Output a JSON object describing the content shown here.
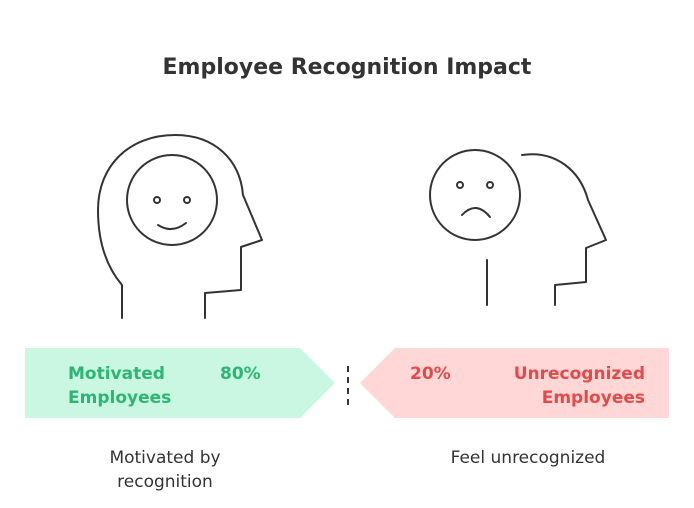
{
  "title": "Employee Recognition Impact",
  "panels": [
    {
      "label_lines": [
        "Motivated",
        "Employees"
      ],
      "percent": "80%",
      "caption_lines": [
        "Motivated by",
        "recognition"
      ]
    },
    {
      "label_lines": [
        "Unrecognized",
        "Employees"
      ],
      "percent": "20%",
      "caption_lines": [
        "Feel unrecognized"
      ]
    }
  ]
}
